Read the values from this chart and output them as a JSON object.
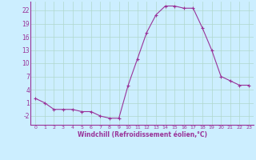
{
  "x": [
    0,
    1,
    2,
    3,
    4,
    5,
    6,
    7,
    8,
    9,
    10,
    11,
    12,
    13,
    14,
    15,
    16,
    17,
    18,
    19,
    20,
    21,
    22,
    23
  ],
  "y": [
    2,
    1,
    -0.5,
    -0.5,
    -0.5,
    -1,
    -1,
    -2,
    -2.5,
    -2.5,
    5,
    11,
    17,
    21,
    23,
    23,
    22.5,
    22.5,
    18,
    13,
    7,
    6,
    5,
    5
  ],
  "line_color": "#993399",
  "marker": "+",
  "bg_color": "#cceeff",
  "grid_color": "#b0d8cc",
  "xlabel": "Windchill (Refroidissement éolien,°C)",
  "yticks": [
    -2,
    1,
    4,
    7,
    10,
    13,
    16,
    19,
    22
  ],
  "xticks": [
    0,
    1,
    2,
    3,
    4,
    5,
    6,
    7,
    8,
    9,
    10,
    11,
    12,
    13,
    14,
    15,
    16,
    17,
    18,
    19,
    20,
    21,
    22,
    23
  ],
  "xlim": [
    -0.5,
    23.5
  ],
  "ylim": [
    -4,
    24
  ],
  "font_color": "#993399"
}
